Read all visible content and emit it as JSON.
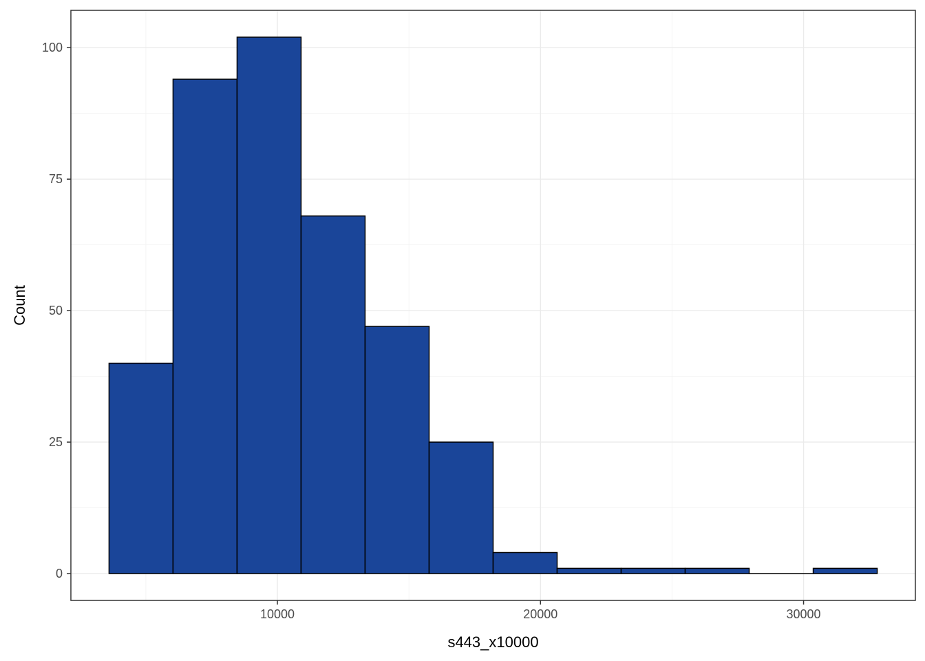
{
  "chart_data": {
    "type": "bar",
    "subtype": "histogram",
    "title": "",
    "xlabel": "s443_x10000",
    "ylabel": "Count",
    "bin_edges": [
      3600,
      6033,
      8467,
      10900,
      13333,
      15767,
      18200,
      20633,
      23067,
      25500,
      27933,
      30367,
      32800
    ],
    "values": [
      40,
      94,
      102,
      68,
      47,
      25,
      4,
      1,
      1,
      1,
      0,
      1
    ],
    "xlim": [
      2150,
      34250
    ],
    "ylim": [
      -5.1,
      107.1
    ],
    "x_ticks": [
      10000,
      20000,
      30000
    ],
    "x_tick_labels": [
      "10000",
      "20000",
      "30000"
    ],
    "x_minor_ticks": [
      5000,
      15000,
      25000
    ],
    "y_ticks": [
      0,
      25,
      50,
      75,
      100
    ],
    "y_tick_labels": [
      "0",
      "25",
      "50",
      "75",
      "100"
    ],
    "y_minor_ticks": [
      12.5,
      37.5,
      62.5,
      87.5
    ],
    "grid": true,
    "legend": "none",
    "colors": {
      "bar_fill": "#1a4599",
      "bar_stroke": "#000000",
      "panel_border": "#333333",
      "grid": "#ebebeb"
    }
  }
}
